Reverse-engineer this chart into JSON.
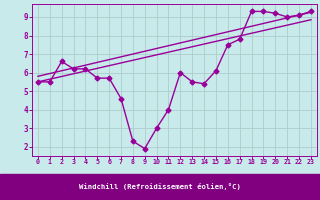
{
  "line1_x": [
    0,
    1,
    2,
    3,
    4,
    5,
    6,
    7,
    8,
    9,
    10,
    11,
    12,
    13,
    14,
    15,
    16,
    17,
    18,
    19,
    20,
    21,
    22,
    23
  ],
  "line1_y": [
    5.5,
    5.5,
    6.6,
    6.2,
    6.2,
    5.7,
    5.7,
    4.6,
    2.3,
    1.9,
    3.0,
    4.0,
    6.0,
    5.5,
    5.4,
    6.1,
    7.5,
    7.8,
    9.3,
    9.3,
    9.2,
    9.0,
    9.1,
    9.3
  ],
  "line2_x": [
    0,
    23
  ],
  "line2_y": [
    5.8,
    9.25
  ],
  "line3_x": [
    0,
    23
  ],
  "line3_y": [
    5.5,
    8.85
  ],
  "line_color": "#990099",
  "bg_color": "#c8eaea",
  "grid_color": "#b0cccc",
  "xlabel": "Windchill (Refroidissement éolien,°C)",
  "xlabel_bg": "#800080",
  "xlabel_color": "#ffffff",
  "xlim": [
    -0.5,
    23.5
  ],
  "ylim": [
    1.5,
    9.7
  ],
  "xticks": [
    0,
    1,
    2,
    3,
    4,
    5,
    6,
    7,
    8,
    9,
    10,
    11,
    12,
    13,
    14,
    15,
    16,
    17,
    18,
    19,
    20,
    21,
    22,
    23
  ],
  "yticks": [
    2,
    3,
    4,
    5,
    6,
    7,
    8,
    9
  ],
  "marker": "D",
  "markersize": 2.5,
  "linewidth": 1.0
}
